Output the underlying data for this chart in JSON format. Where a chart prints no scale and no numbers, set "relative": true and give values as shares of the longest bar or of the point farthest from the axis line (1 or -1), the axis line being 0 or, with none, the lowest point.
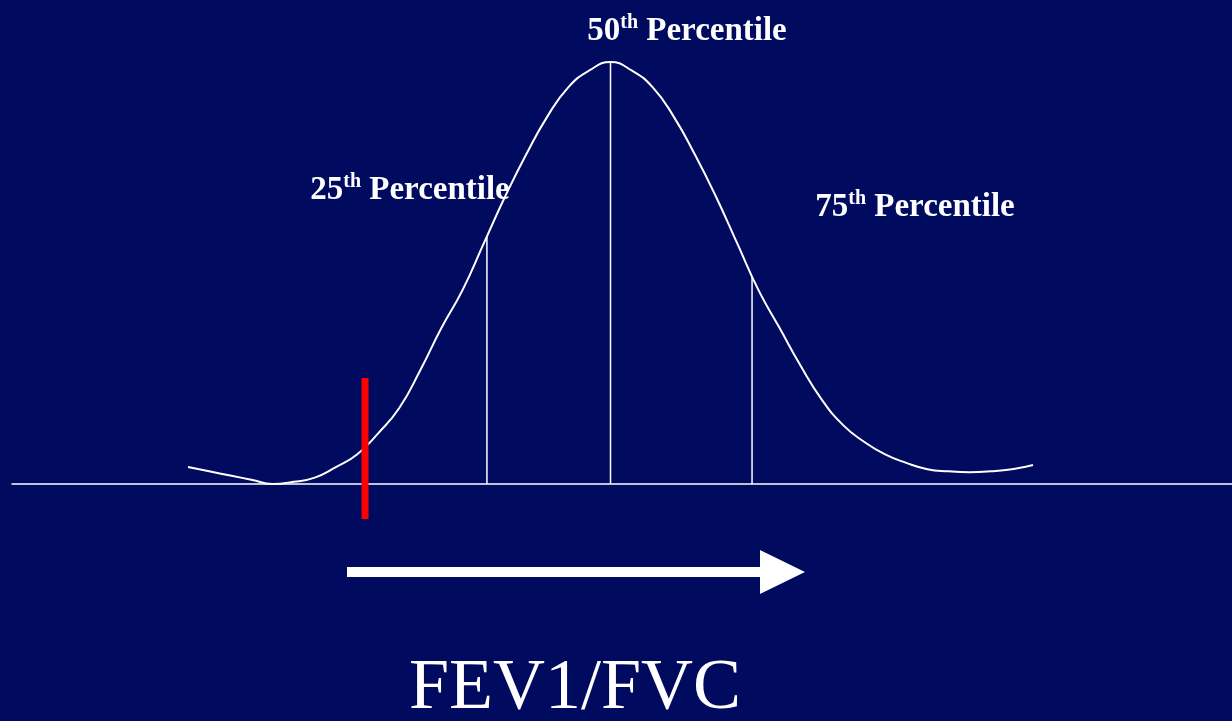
{
  "chart_data": {
    "type": "line",
    "relative": true,
    "xlabel": "FEV1/FVC",
    "marker": "none",
    "categories": [
      null,
      null,
      null,
      null,
      null,
      null,
      null,
      null,
      null,
      null,
      null,
      null,
      null,
      null,
      null,
      null,
      null,
      null,
      null,
      null,
      null,
      null,
      null,
      null,
      null,
      null,
      null,
      null,
      null,
      null,
      null,
      null,
      null,
      null,
      null,
      null,
      null,
      null,
      null,
      null,
      null
    ],
    "series": [
      {
        "color": "#ffffff",
        "values": [
          0.04,
          0.03,
          0.02,
          0.01,
          0.0,
          0.005,
          0.015,
          0.04,
          0.07,
          0.12,
          0.18,
          0.27,
          0.37,
          0.46,
          0.57,
          0.68,
          0.78,
          0.87,
          0.94,
          0.98,
          1.0,
          0.98,
          0.94,
          0.87,
          0.78,
          0.68,
          0.57,
          0.46,
          0.37,
          0.28,
          0.2,
          0.14,
          0.1,
          0.07,
          0.05,
          0.035,
          0.03,
          0.028,
          0.03,
          0.035,
          0.045
        ]
      }
    ],
    "annotations": [
      "25$^{th}$ Percentile",
      "50$^{th}$ Percentile",
      "75$^{th}$ Percentile"
    ]
  }
}
